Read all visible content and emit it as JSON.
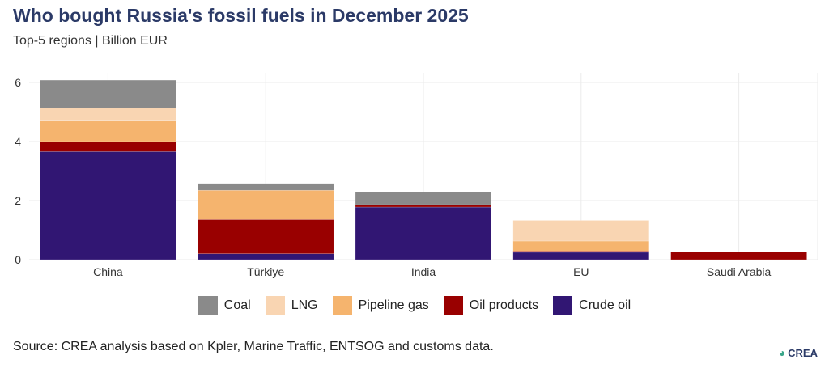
{
  "title": "Who bought Russia's fossil fuels in December 2025",
  "subtitle": "Top-5 regions | Billion EUR",
  "source": "Source: CREA analysis based on Kpler, Marine Traffic, ENTSOG and customs data.",
  "logo": "CREA",
  "chart_data": {
    "type": "bar",
    "stacked": true,
    "categories": [
      "China",
      "Türkiye",
      "India",
      "EU",
      "Saudi Arabia"
    ],
    "ylim": [
      0,
      6.2
    ],
    "yticks": [
      0,
      2,
      4,
      6
    ],
    "grid": true,
    "legend_position": "bottom",
    "series": [
      {
        "name": "Crude oil",
        "color": "#311673",
        "values": [
          3.66,
          0.2,
          1.78,
          0.25,
          0
        ]
      },
      {
        "name": "Oil products",
        "color": "#990000",
        "values": [
          0.34,
          1.16,
          0.08,
          0.04,
          0.27
        ]
      },
      {
        "name": "Pipeline gas",
        "color": "#f5b46e",
        "values": [
          0.72,
          0.99,
          0,
          0.34,
          0
        ]
      },
      {
        "name": "LNG",
        "color": "#f9d5b2",
        "values": [
          0.42,
          0,
          0,
          0.7,
          0
        ]
      },
      {
        "name": "Coal",
        "color": "#8a8a8a",
        "values": [
          0.94,
          0.23,
          0.43,
          0,
          0
        ]
      }
    ],
    "legend_order": [
      "Coal",
      "LNG",
      "Pipeline gas",
      "Oil products",
      "Crude oil"
    ]
  }
}
